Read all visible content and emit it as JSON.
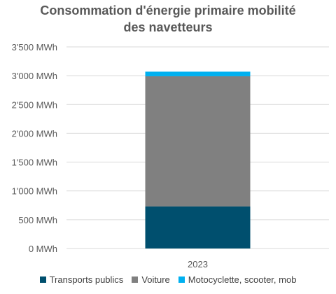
{
  "chart_data": {
    "type": "bar",
    "stacked": true,
    "title_lines": [
      "Consommation d'énergie primaire mobilité",
      "des navetteurs"
    ],
    "categories": [
      "2023"
    ],
    "series": [
      {
        "name": "Transports publics",
        "values": [
          730
        ],
        "color": "#004F6E"
      },
      {
        "name": "Voiture",
        "values": [
          2260
        ],
        "color": "#808080"
      },
      {
        "name": "Motocyclette, scooter, mob",
        "values": [
          80
        ],
        "color": "#00B0F0"
      }
    ],
    "ylim": [
      0,
      3500
    ],
    "yticks": [
      0,
      500,
      1000,
      1500,
      2000,
      2500,
      3000,
      3500
    ],
    "ytick_labels": [
      "0 MWh",
      "500 MWh",
      "1'000 MWh",
      "1'500 MWh",
      "2'000 MWh",
      "2'500 MWh",
      "3'000 MWh",
      "3'500 MWh"
    ],
    "grid": true,
    "legend_position": "bottom"
  }
}
